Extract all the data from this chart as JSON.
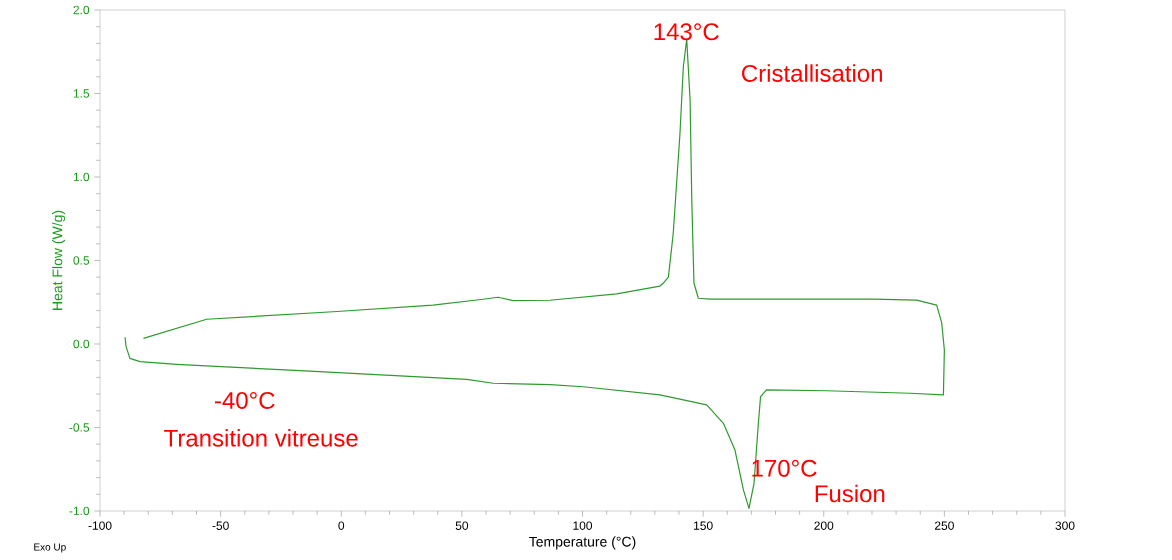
{
  "chart_data": {
    "type": "line",
    "xlabel": "Temperature (°C)",
    "ylabel": "Heat Flow (W/g)",
    "series": [
      {
        "color": "#2e9a2e",
        "x": [
          -82,
          -55.8,
          -3.4,
          38,
          58.8,
          65,
          71.2,
          86.5,
          114.2,
          132.1,
          133.5,
          135.6,
          137.6,
          140.4,
          141.8,
          143.2,
          144.6,
          145.3,
          146.2,
          148,
          152.8,
          220.5,
          238.5,
          246.8,
          248.9,
          250,
          249.6,
          235.8,
          201.2,
          176.3,
          173.8,
          172.9,
          171.1,
          169,
          166.7,
          163.2,
          158.4,
          151.5,
          132.1,
          100.3,
          86.5,
          63,
          52,
          -17.1,
          -68.2,
          -83.4,
          -87.6,
          -89.2,
          -89.6
        ],
        "values": [
          0.034,
          0.148,
          0.193,
          0.233,
          0.268,
          0.28,
          0.26,
          0.262,
          0.3,
          0.347,
          0.365,
          0.4,
          0.66,
          1.26,
          1.66,
          1.825,
          1.46,
          0.86,
          0.365,
          0.274,
          0.269,
          0.269,
          0.263,
          0.233,
          0.126,
          -0.036,
          -0.305,
          -0.295,
          -0.28,
          -0.275,
          -0.315,
          -0.475,
          -0.834,
          -0.984,
          -0.874,
          -0.635,
          -0.475,
          -0.365,
          -0.305,
          -0.256,
          -0.243,
          -0.235,
          -0.212,
          -0.16,
          -0.122,
          -0.106,
          -0.086,
          -0.016,
          0.04
        ]
      }
    ],
    "xlim": [
      -100,
      300
    ],
    "xticks": [
      -100,
      -50,
      0,
      50,
      100,
      150,
      200,
      250,
      300
    ],
    "ylim": [
      -1,
      2
    ],
    "yticks": [
      {
        "value": -1,
        "label": "-1.0"
      },
      {
        "value": -0.5,
        "label": "-0.5"
      },
      {
        "value": 0,
        "label": "0.0"
      },
      {
        "value": 0.5,
        "label": "0.5"
      },
      {
        "value": 1,
        "label": "1.0"
      },
      {
        "value": 1.5,
        "label": "1.5"
      },
      {
        "value": 2,
        "label": "2.0"
      }
    ],
    "annotations": [
      {
        "text": "143°C",
        "x": 143,
        "y": 1.825
      },
      "Cristallisation",
      {
        "text": "170°C",
        "x": 169,
        "y": -0.984
      },
      "Fusion",
      {
        "text": "-40°C",
        "x": -40,
        "y": -0.15
      },
      "Transition vitreuse",
      "Exo Up"
    ],
    "grid": false,
    "marker": "none",
    "line_style": "solid"
  }
}
